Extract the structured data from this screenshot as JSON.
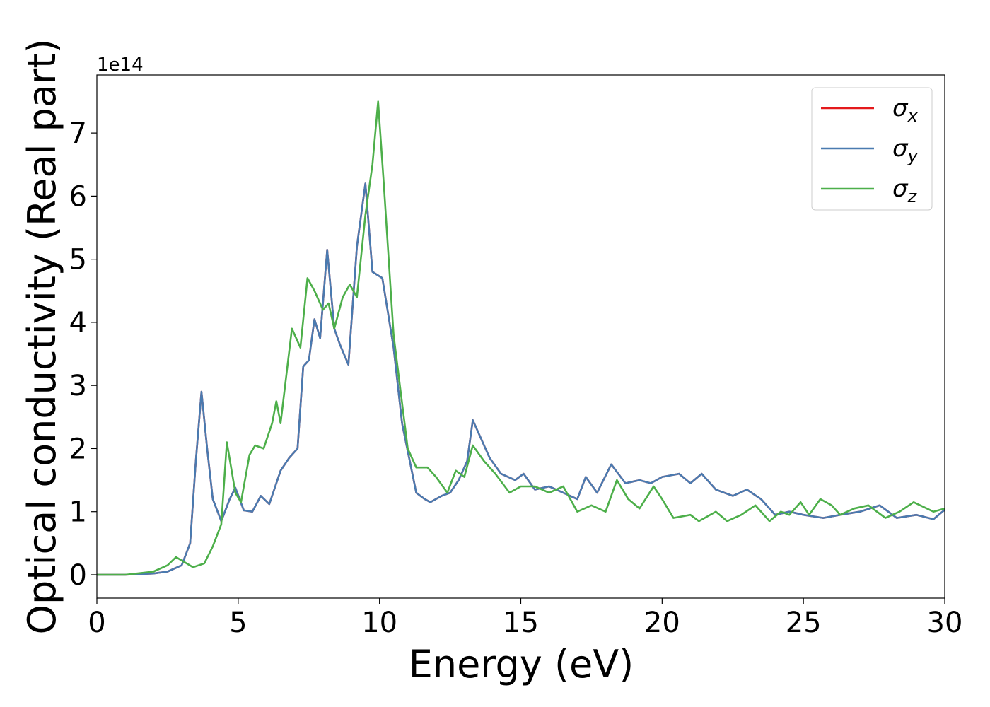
{
  "chart_data": {
    "type": "line",
    "xlabel": "Energy (eV)",
    "ylabel": "Optical conductivity (Real part)",
    "offset_label": "1e14",
    "xlim": [
      0,
      30
    ],
    "ylim": [
      -0.37,
      7.92
    ],
    "xticks": [
      0,
      5,
      10,
      15,
      20,
      25,
      30
    ],
    "yticks": [
      0,
      1,
      2,
      3,
      4,
      5,
      6,
      7
    ],
    "grid": false,
    "legend": "upper right",
    "series": [
      {
        "name": "σx",
        "color": "#e41a1c",
        "x": [
          0,
          1,
          2,
          2.5,
          3,
          3.3,
          3.5,
          3.7,
          3.9,
          4.1,
          4.4,
          4.7,
          4.9,
          5.2,
          5.5,
          5.8,
          6.1,
          6.5,
          6.8,
          7.1,
          7.3,
          7.5,
          7.7,
          7.9,
          8.15,
          8.4,
          8.6,
          8.9,
          9.2,
          9.5,
          9.75,
          10.1,
          10.5,
          10.8,
          11.3,
          11.6,
          11.8,
          12.2,
          12.5,
          12.8,
          13.1,
          13.3,
          13.5,
          13.9,
          14.3,
          14.8,
          15.1,
          15.5,
          16,
          16.5,
          17,
          17.3,
          17.7,
          18.2,
          18.7,
          19.2,
          19.6,
          20,
          20.6,
          21,
          21.4,
          21.9,
          22.5,
          23,
          23.5,
          24,
          24.5,
          25,
          25.7,
          26.3,
          27,
          27.7,
          28.3,
          29,
          29.6,
          30
        ],
        "values": [
          0,
          0,
          0.02,
          0.05,
          0.15,
          0.5,
          1.8,
          2.9,
          2.0,
          1.2,
          0.85,
          1.2,
          1.38,
          1.02,
          1.0,
          1.25,
          1.12,
          1.65,
          1.85,
          2.0,
          3.3,
          3.4,
          4.05,
          3.75,
          5.15,
          3.9,
          3.65,
          3.33,
          5.2,
          6.2,
          4.8,
          4.7,
          3.6,
          2.4,
          1.3,
          1.2,
          1.15,
          1.25,
          1.3,
          1.5,
          1.8,
          2.45,
          2.25,
          1.85,
          1.6,
          1.5,
          1.6,
          1.35,
          1.4,
          1.3,
          1.2,
          1.55,
          1.3,
          1.75,
          1.45,
          1.5,
          1.45,
          1.55,
          1.6,
          1.45,
          1.6,
          1.35,
          1.25,
          1.35,
          1.2,
          0.95,
          1.0,
          0.95,
          0.9,
          0.95,
          1.0,
          1.1,
          0.9,
          0.95,
          0.88,
          1.03
        ]
      },
      {
        "name": "σy",
        "color": "#4a7bb0",
        "x": [
          0,
          1,
          2,
          2.5,
          3,
          3.3,
          3.5,
          3.7,
          3.9,
          4.1,
          4.4,
          4.7,
          4.9,
          5.2,
          5.5,
          5.8,
          6.1,
          6.5,
          6.8,
          7.1,
          7.3,
          7.5,
          7.7,
          7.9,
          8.15,
          8.4,
          8.6,
          8.9,
          9.2,
          9.5,
          9.75,
          10.1,
          10.5,
          10.8,
          11.3,
          11.6,
          11.8,
          12.2,
          12.5,
          12.8,
          13.1,
          13.3,
          13.5,
          13.9,
          14.3,
          14.8,
          15.1,
          15.5,
          16,
          16.5,
          17,
          17.3,
          17.7,
          18.2,
          18.7,
          19.2,
          19.6,
          20,
          20.6,
          21,
          21.4,
          21.9,
          22.5,
          23,
          23.5,
          24,
          24.5,
          25,
          25.7,
          26.3,
          27,
          27.7,
          28.3,
          29,
          29.6,
          30
        ],
        "values": [
          0,
          0,
          0.02,
          0.05,
          0.15,
          0.5,
          1.8,
          2.9,
          2.0,
          1.2,
          0.85,
          1.2,
          1.38,
          1.02,
          1.0,
          1.25,
          1.12,
          1.65,
          1.85,
          2.0,
          3.3,
          3.4,
          4.05,
          3.75,
          5.15,
          3.9,
          3.65,
          3.33,
          5.2,
          6.2,
          4.8,
          4.7,
          3.6,
          2.4,
          1.3,
          1.2,
          1.15,
          1.25,
          1.3,
          1.5,
          1.8,
          2.45,
          2.25,
          1.85,
          1.6,
          1.5,
          1.6,
          1.35,
          1.4,
          1.3,
          1.2,
          1.55,
          1.3,
          1.75,
          1.45,
          1.5,
          1.45,
          1.55,
          1.6,
          1.45,
          1.6,
          1.35,
          1.25,
          1.35,
          1.2,
          0.95,
          1.0,
          0.95,
          0.9,
          0.95,
          1.0,
          1.1,
          0.9,
          0.95,
          0.88,
          1.03
        ]
      },
      {
        "name": "σz",
        "color": "#4daf4a",
        "x": [
          0,
          1,
          2,
          2.5,
          2.8,
          3.1,
          3.4,
          3.8,
          4.1,
          4.4,
          4.6,
          4.9,
          5.1,
          5.4,
          5.6,
          5.9,
          6.2,
          6.35,
          6.5,
          6.9,
          7.2,
          7.45,
          7.7,
          8,
          8.2,
          8.4,
          8.7,
          8.95,
          9.2,
          9.5,
          9.75,
          9.95,
          10.15,
          10.5,
          11,
          11.3,
          11.7,
          12,
          12.4,
          12.7,
          13,
          13.3,
          13.7,
          14.1,
          14.6,
          15,
          15.5,
          16,
          16.5,
          17,
          17.5,
          18,
          18.4,
          18.8,
          19.2,
          19.7,
          20,
          20.4,
          21,
          21.3,
          21.9,
          22.3,
          22.8,
          23.3,
          23.8,
          24.2,
          24.5,
          24.9,
          25.2,
          25.6,
          26,
          26.3,
          26.8,
          27.3,
          27.9,
          28.4,
          28.9,
          29.6,
          30
        ],
        "values": [
          0,
          0,
          0.05,
          0.15,
          0.28,
          0.2,
          0.12,
          0.18,
          0.45,
          0.8,
          2.1,
          1.3,
          1.15,
          1.9,
          2.05,
          2.0,
          2.4,
          2.75,
          2.4,
          3.9,
          3.6,
          4.7,
          4.5,
          4.2,
          4.3,
          3.9,
          4.4,
          4.6,
          4.4,
          5.7,
          6.5,
          7.5,
          6.2,
          3.8,
          2.0,
          1.7,
          1.7,
          1.55,
          1.3,
          1.65,
          1.55,
          2.05,
          1.8,
          1.6,
          1.3,
          1.4,
          1.4,
          1.3,
          1.4,
          1.0,
          1.1,
          1.0,
          1.5,
          1.2,
          1.05,
          1.4,
          1.2,
          0.9,
          0.95,
          0.85,
          1.0,
          0.85,
          0.95,
          1.1,
          0.85,
          1.0,
          0.95,
          1.15,
          0.95,
          1.2,
          1.1,
          0.95,
          1.05,
          1.1,
          0.9,
          1.0,
          1.15,
          1.0,
          1.05
        ]
      }
    ]
  }
}
